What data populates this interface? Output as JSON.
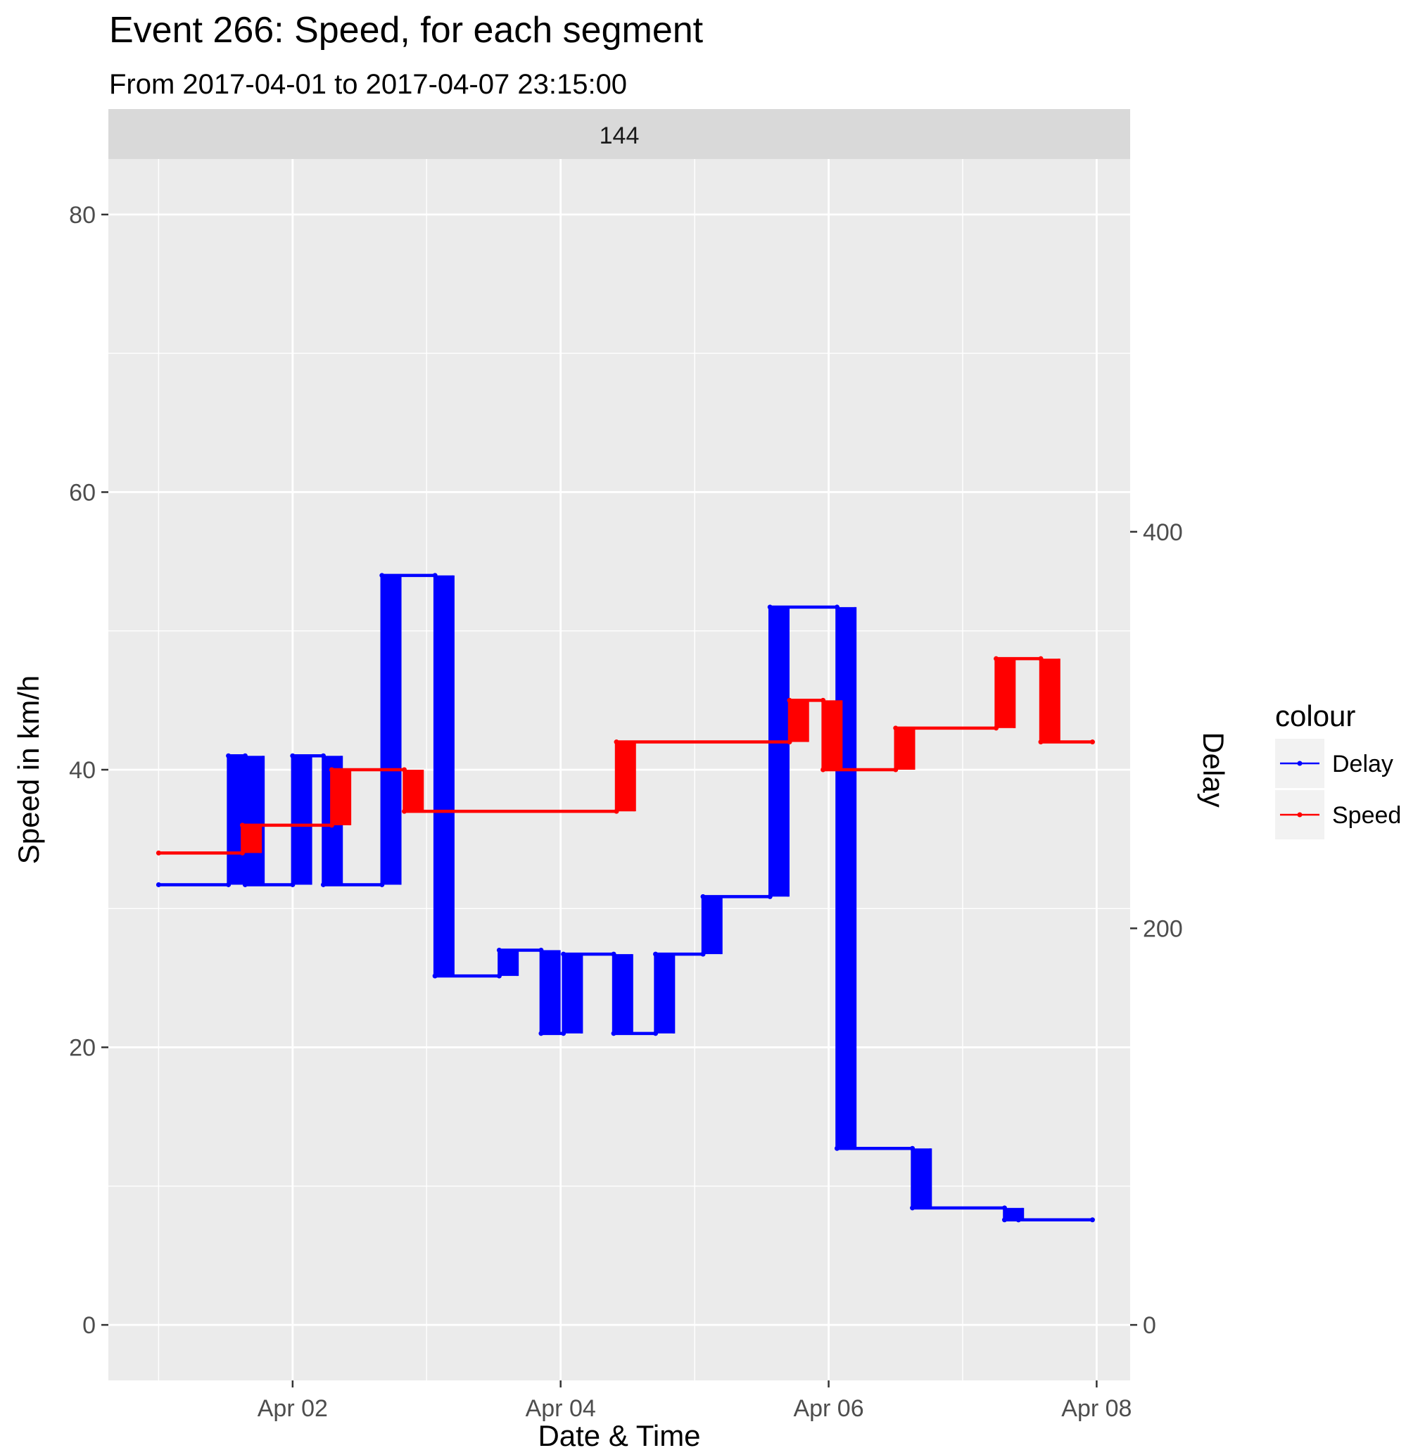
{
  "chart_data": {
    "type": "line",
    "title": "Event 266: Speed, for each segment",
    "subtitle": "From 2017-04-01 to 2017-04-07 23:15:00",
    "facet_label": "144",
    "xlabel": "Date & Time",
    "ylabel": "Speed in km/h",
    "ylabel_right": "Delay",
    "x_ticks": [
      "Apr 02",
      "Apr 04",
      "Apr 06",
      "Apr 08"
    ],
    "xlim": [
      "2017-04-00 15:00",
      "2017-04-08 06:00"
    ],
    "y_ticks": [
      0,
      20,
      40,
      60,
      80
    ],
    "ylim": [
      -4,
      84
    ],
    "y2_ticks": [
      0,
      200,
      400
    ],
    "y2_scale": "Delay = Speed × 7",
    "grid": true,
    "legend": {
      "title": "colour",
      "position": "right",
      "entries": [
        {
          "label": "Delay",
          "color": "#0000FF"
        },
        {
          "label": "Speed",
          "color": "#FF0000"
        }
      ]
    },
    "series": [
      {
        "name": "Delay",
        "color": "#0000FF",
        "axis": "right",
        "x": [
          "2017-04-01 00:00",
          "2017-04-01 12:30",
          "2017-04-01 12:30",
          "2017-04-01 15:30",
          "2017-04-01 15:30",
          "2017-04-02 00:00",
          "2017-04-02 00:00",
          "2017-04-02 05:30",
          "2017-04-02 05:30",
          "2017-04-02 16:00",
          "2017-04-02 16:00",
          "2017-04-03 01:30",
          "2017-04-03 01:30",
          "2017-04-03 13:00",
          "2017-04-03 13:00",
          "2017-04-03 20:30",
          "2017-04-03 20:30",
          "2017-04-04 00:30",
          "2017-04-04 00:30",
          "2017-04-04 09:30",
          "2017-04-04 09:30",
          "2017-04-04 17:00",
          "2017-04-04 17:00",
          "2017-04-05 01:30",
          "2017-04-05 01:30",
          "2017-04-05 13:30",
          "2017-04-05 13:30",
          "2017-04-06 01:30",
          "2017-04-06 01:30",
          "2017-04-06 15:00",
          "2017-04-06 15:00",
          "2017-04-07 07:30",
          "2017-04-07 07:30",
          "2017-04-07 10:00",
          "2017-04-07 10:00",
          "2017-04-07 23:15"
        ],
        "values": [
          222,
          222,
          287,
          287,
          222,
          222,
          287,
          287,
          222,
          222,
          378,
          378,
          176,
          176,
          189,
          189,
          147,
          147,
          187,
          187,
          147,
          147,
          187,
          187,
          216,
          216,
          362,
          362,
          89,
          89,
          59,
          59,
          53,
          53,
          53,
          53
        ]
      },
      {
        "name": "Speed",
        "color": "#FF0000",
        "axis": "left",
        "x": [
          "2017-04-01 00:00",
          "2017-04-01 15:00",
          "2017-04-01 15:00",
          "2017-04-02 07:00",
          "2017-04-02 07:00",
          "2017-04-02 20:00",
          "2017-04-02 20:00",
          "2017-04-04 10:00",
          "2017-04-04 10:00",
          "2017-04-05 17:00",
          "2017-04-05 17:00",
          "2017-04-05 23:00",
          "2017-04-05 23:00",
          "2017-04-06 12:00",
          "2017-04-06 12:00",
          "2017-04-07 06:00",
          "2017-04-07 06:00",
          "2017-04-07 14:00",
          "2017-04-07 14:00",
          "2017-04-07 23:15"
        ],
        "values": [
          34,
          34,
          36,
          36,
          40,
          40,
          37,
          37,
          42,
          42,
          45,
          45,
          40,
          40,
          43,
          43,
          48,
          48,
          42,
          42
        ]
      }
    ]
  }
}
